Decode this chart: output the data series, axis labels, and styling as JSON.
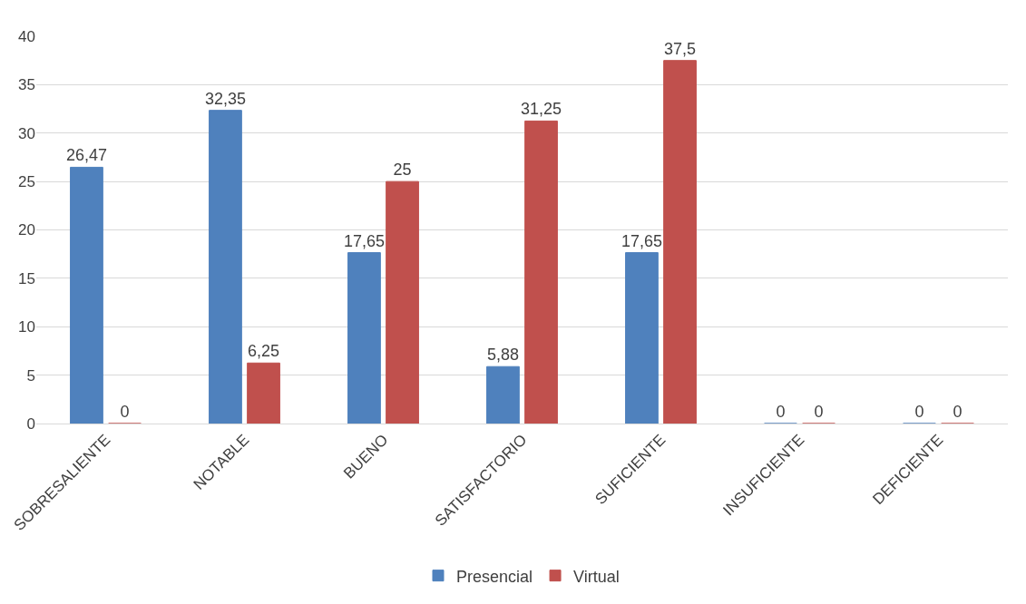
{
  "chart_data": {
    "type": "bar",
    "categories": [
      "SOBRESALIENTE",
      "NOTABLE",
      "BUENO",
      "SATISFACTORIO",
      "SUFICIENTE",
      "INSUFICIENTE",
      "DEFICIENTE"
    ],
    "series": [
      {
        "name": "Presencial",
        "color": "#4f81bd",
        "values": [
          26.47,
          32.35,
          17.65,
          5.88,
          17.65,
          0,
          0
        ],
        "value_labels": [
          "26,47",
          "32,35",
          "17,65",
          "5,88",
          "17,65",
          "0",
          "0"
        ]
      },
      {
        "name": "Virtual",
        "color": "#c0504d",
        "values": [
          0,
          6.25,
          25,
          31.25,
          37.5,
          0,
          0
        ],
        "value_labels": [
          "0",
          "6,25",
          "25",
          "31,25",
          "37,5",
          "0",
          "0"
        ]
      }
    ],
    "ylim": [
      0,
      40
    ],
    "yticks": [
      0,
      5,
      10,
      15,
      20,
      25,
      30,
      35,
      40
    ],
    "grid": "y",
    "legend": "bottom"
  }
}
